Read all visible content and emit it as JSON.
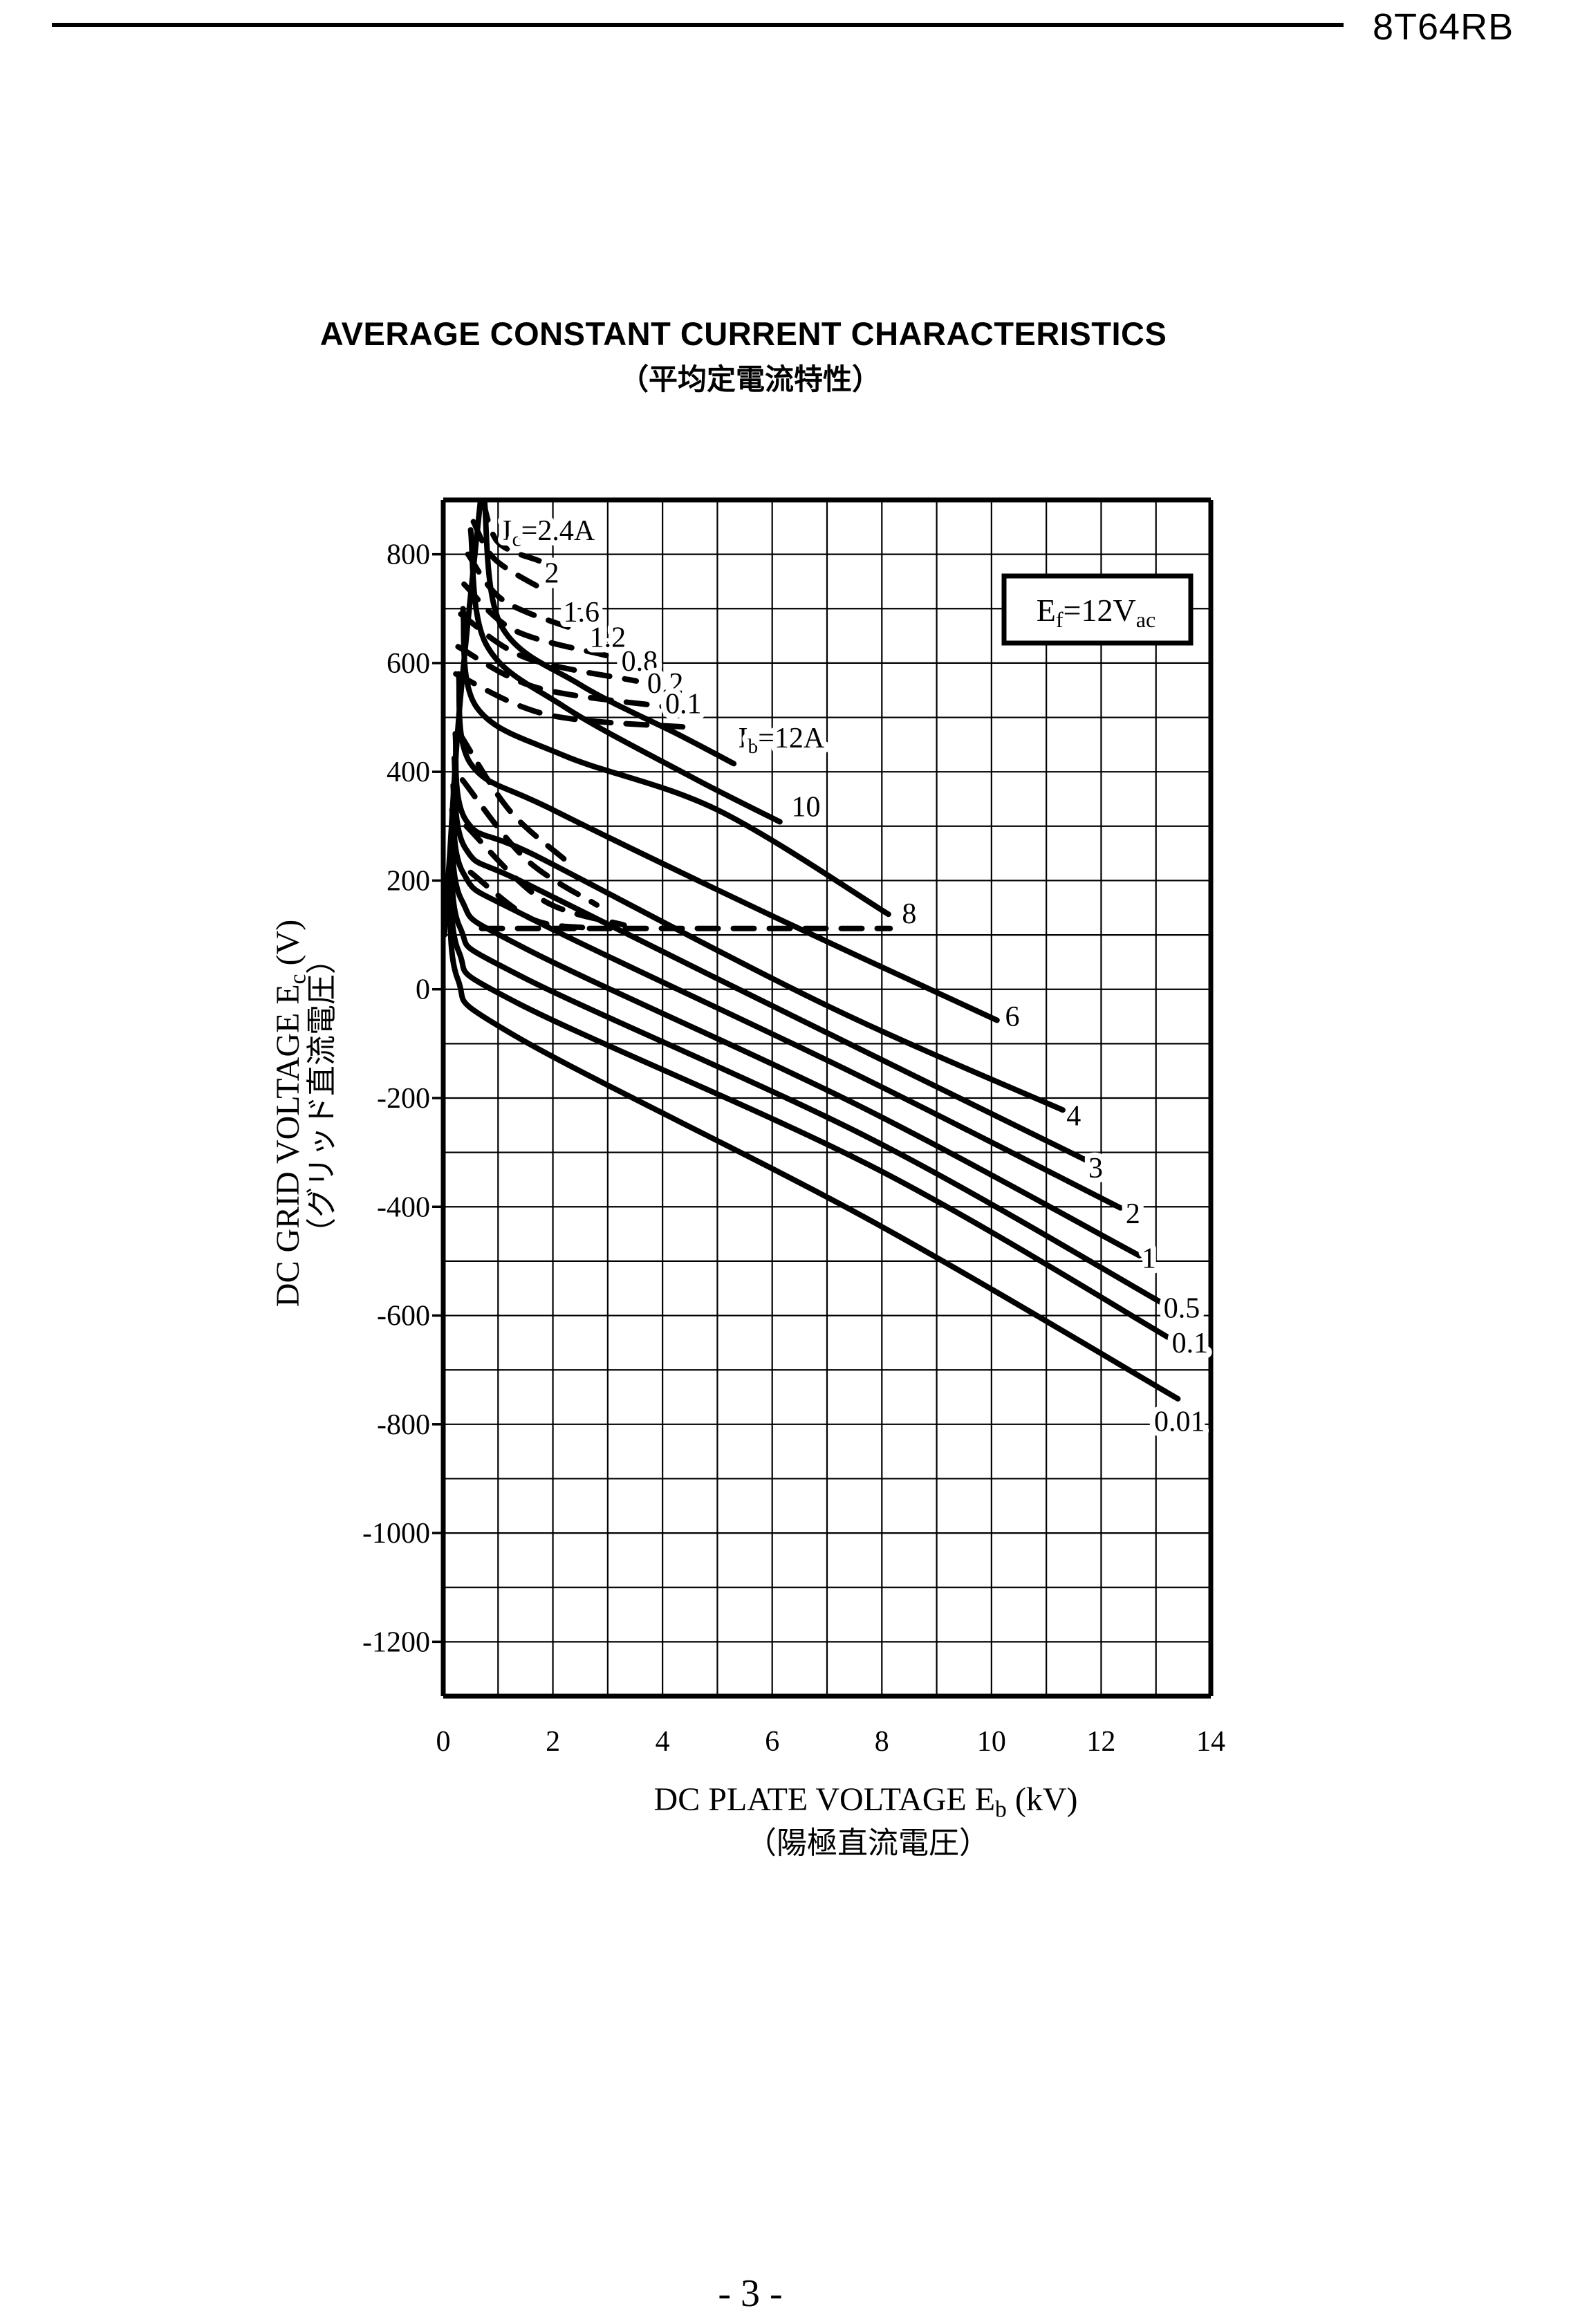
{
  "page": {
    "header_model": "8T64RB",
    "page_number": "- 3 -"
  },
  "title": {
    "en": "AVERAGE CONSTANT CURRENT CHARACTERISTICS",
    "jp": "（平均定電流特性）"
  },
  "chart_data": {
    "type": "line",
    "title": "AVERAGE CONSTANT CURRENT CHARACTERISTICS",
    "title_jp": "（平均定電流特性）",
    "xlabel": "DC PLATE VOLTAGE   E{b}  (kV)",
    "xlabel_jp": "（陽極直流電圧）",
    "ylabel": "DC GRID VOLTAGE   E{c}   (V)",
    "ylabel_jp": "（グリッド直流電圧）",
    "annotation": "E{f}=12V{ac}",
    "xlim": [
      0,
      14
    ],
    "ylim": [
      -1300,
      900
    ],
    "x_ticks": [
      0,
      2,
      4,
      6,
      8,
      10,
      12,
      14
    ],
    "y_ticks": [
      800,
      600,
      400,
      200,
      0,
      -200,
      -400,
      -600,
      -800,
      -1000,
      -1200
    ],
    "grid": {
      "x_step": 1,
      "y_step": 100,
      "on": true
    },
    "legend_position": "none",
    "series": [
      {
        "name": "diode-boundary",
        "style": "solid",
        "label": "",
        "points": [
          [
            0.68,
            900
          ],
          [
            0.3,
            520
          ],
          [
            0.12,
            250
          ],
          [
            0.02,
            100
          ]
        ]
      },
      {
        "name": "Ib-12A",
        "style": "solid",
        "label": "I{b}=12A",
        "label_pos": [
          5.38,
          445
        ],
        "label_anchor": "start",
        "points": [
          [
            0.75,
            900
          ],
          [
            1.05,
            670
          ],
          [
            2.5,
            560
          ],
          [
            4.3,
            468
          ],
          [
            5.3,
            415
          ]
        ]
      },
      {
        "name": "Ib-10A",
        "style": "solid",
        "label": "10",
        "label_pos": [
          6.35,
          318
        ],
        "label_anchor": "start",
        "points": [
          [
            0.5,
            845
          ],
          [
            0.78,
            635
          ],
          [
            2.2,
            520
          ],
          [
            4.5,
            392
          ],
          [
            6.14,
            308
          ]
        ]
      },
      {
        "name": "Ib-8A",
        "style": "solid",
        "label": "8",
        "label_pos": [
          8.5,
          122
        ],
        "label_anchor": "middle",
        "points": [
          [
            0.36,
            700
          ],
          [
            0.6,
            520
          ],
          [
            2.2,
            430
          ],
          [
            5.0,
            330
          ],
          [
            8.12,
            138
          ]
        ]
      },
      {
        "name": "Ib-6A",
        "style": "solid",
        "label": "6",
        "label_pos": [
          10.38,
          -68
        ],
        "label_anchor": "middle",
        "points": [
          [
            0.28,
            580
          ],
          [
            0.5,
            415
          ],
          [
            2.0,
            330
          ],
          [
            6.0,
            135
          ],
          [
            10.1,
            -57
          ]
        ]
      },
      {
        "name": "Ib-4A",
        "style": "solid",
        "label": "4",
        "label_pos": [
          11.5,
          -250
        ],
        "label_anchor": "middle",
        "points": [
          [
            0.22,
            470
          ],
          [
            0.42,
            310
          ],
          [
            1.8,
            240
          ],
          [
            7.0,
            -30
          ],
          [
            11.3,
            -222
          ]
        ]
      },
      {
        "name": "Ib-3A",
        "style": "solid",
        "label": "3",
        "label_pos": [
          11.9,
          -346
        ],
        "label_anchor": "middle",
        "points": [
          [
            0.2,
            425
          ],
          [
            0.4,
            260
          ],
          [
            1.7,
            185
          ],
          [
            7.2,
            -90
          ],
          [
            11.8,
            -318
          ]
        ]
      },
      {
        "name": "Ib-2A",
        "style": "solid",
        "label": "2",
        "label_pos": [
          12.58,
          -430
        ],
        "label_anchor": "middle",
        "points": [
          [
            0.18,
            375
          ],
          [
            0.36,
            215
          ],
          [
            1.6,
            130
          ],
          [
            7.4,
            -150
          ],
          [
            12.35,
            -402
          ]
        ]
      },
      {
        "name": "Ib-1A",
        "style": "solid",
        "label": "1",
        "label_pos": [
          12.87,
          -512
        ],
        "label_anchor": "middle",
        "points": [
          [
            0.16,
            330
          ],
          [
            0.33,
            165
          ],
          [
            1.5,
            75
          ],
          [
            7.6,
            -215
          ],
          [
            12.7,
            -490
          ]
        ]
      },
      {
        "name": "Ib-0.5A",
        "style": "solid",
        "label": "0.5",
        "label_pos": [
          13.47,
          -604
        ],
        "label_anchor": "middle",
        "points": [
          [
            0.15,
            290
          ],
          [
            0.3,
            115
          ],
          [
            1.4,
            25
          ],
          [
            7.8,
            -275
          ],
          [
            13.2,
            -582
          ]
        ]
      },
      {
        "name": "Ib-0.1A",
        "style": "solid",
        "label": "0.1",
        "label_pos": [
          13.62,
          -668
        ],
        "label_anchor": "middle",
        "points": [
          [
            0.14,
            250
          ],
          [
            0.28,
            70
          ],
          [
            1.35,
            -25
          ],
          [
            7.9,
            -330
          ],
          [
            13.42,
            -652
          ]
        ]
      },
      {
        "name": "Ib-0.01A",
        "style": "solid",
        "label": "0.01",
        "label_pos": [
          13.43,
          -812
        ],
        "label_anchor": "middle",
        "points": [
          [
            0.13,
            210
          ],
          [
            0.26,
            20
          ],
          [
            1.3,
            -85
          ],
          [
            7.7,
            -420
          ],
          [
            13.4,
            -753
          ]
        ]
      },
      {
        "name": "Ic-2.4A",
        "style": "dashed",
        "label": "I{c}=2.4A",
        "label_pos": [
          1.08,
          826
        ],
        "label_anchor": "start",
        "points": [
          [
            0.72,
            900
          ],
          [
            1.0,
            822
          ],
          [
            1.75,
            788
          ]
        ]
      },
      {
        "name": "Ic-2A",
        "style": "dashed",
        "label": "2",
        "label_pos": [
          1.98,
          748
        ],
        "label_anchor": "middle",
        "points": [
          [
            0.55,
            860
          ],
          [
            0.95,
            790
          ],
          [
            1.92,
            730
          ]
        ]
      },
      {
        "name": "Ic-1.6A",
        "style": "dashed",
        "label": "1.6",
        "label_pos": [
          2.52,
          676
        ],
        "label_anchor": "middle",
        "points": [
          [
            0.45,
            800
          ],
          [
            1.1,
            715
          ],
          [
            2.45,
            660
          ]
        ]
      },
      {
        "name": "Ic-1.2A",
        "style": "dashed",
        "label": "1.2",
        "label_pos": [
          3.0,
          630
        ],
        "label_anchor": "middle",
        "points": [
          [
            0.38,
            745
          ],
          [
            1.3,
            660
          ],
          [
            2.97,
            614
          ]
        ]
      },
      {
        "name": "Ic-0.8A",
        "style": "dashed",
        "label": "0.8",
        "label_pos": [
          3.58,
          586
        ],
        "label_anchor": "middle",
        "points": [
          [
            0.32,
            690
          ],
          [
            1.5,
            610
          ],
          [
            3.52,
            567
          ]
        ]
      },
      {
        "name": "Ic-0.2A",
        "style": "dashed",
        "label": "0.2",
        "label_pos": [
          4.05,
          545
        ],
        "label_anchor": "middle",
        "points": [
          [
            0.27,
            630
          ],
          [
            1.7,
            555
          ],
          [
            4.02,
            520
          ]
        ]
      },
      {
        "name": "Ic-0.1A",
        "style": "dashed",
        "label": "0.1",
        "label_pos": [
          4.38,
          508
        ],
        "label_anchor": "middle",
        "points": [
          [
            0.23,
            580
          ],
          [
            1.9,
            505
          ],
          [
            4.45,
            482
          ]
        ]
      },
      {
        "name": "Ic-tail-1",
        "style": "dashed",
        "label": "",
        "points": [
          [
            0.3,
            470
          ],
          [
            1.2,
            330
          ],
          [
            2.2,
            240
          ]
        ]
      },
      {
        "name": "Ic-tail-2",
        "style": "dashed",
        "label": "",
        "points": [
          [
            0.35,
            385
          ],
          [
            1.5,
            240
          ],
          [
            2.8,
            155
          ]
        ]
      },
      {
        "name": "Ic-tail-3",
        "style": "dashed",
        "label": "",
        "points": [
          [
            0.42,
            300
          ],
          [
            1.8,
            165
          ],
          [
            3.3,
            118
          ]
        ]
      },
      {
        "name": "Ic-tail-4",
        "style": "dashed",
        "label": "",
        "points": [
          [
            0.5,
            215
          ],
          [
            1.6,
            130
          ],
          [
            2.6,
            113
          ]
        ]
      },
      {
        "name": "Ic-zero-boundary",
        "style": "dashed",
        "label": "",
        "points": [
          [
            0.7,
            112
          ],
          [
            8.15,
            112
          ]
        ]
      }
    ]
  }
}
